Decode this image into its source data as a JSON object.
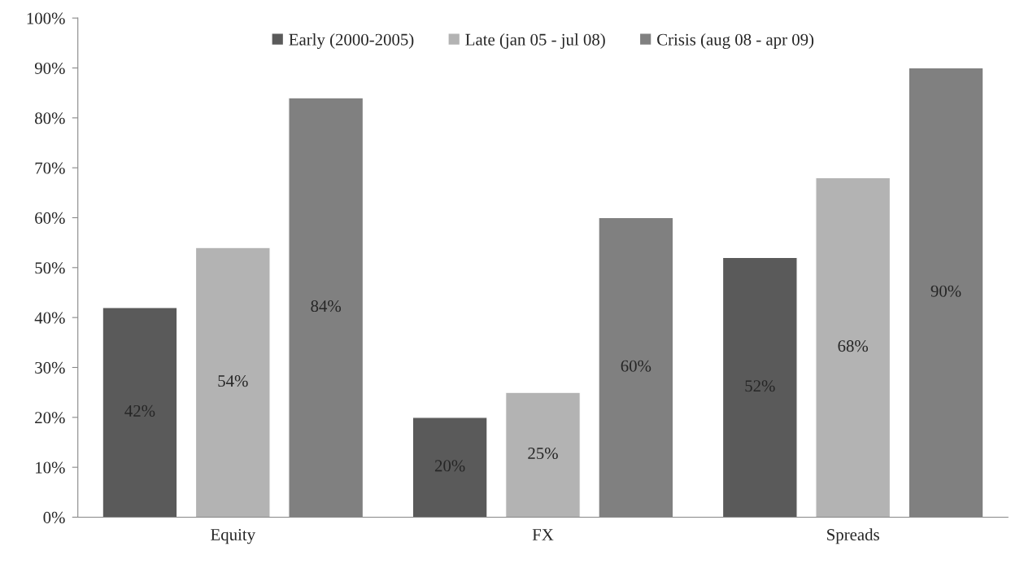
{
  "chart_data": {
    "type": "bar",
    "categories": [
      "Equity",
      "FX",
      "Spreads"
    ],
    "series": [
      {
        "name": "Early (2000-2005)",
        "color": "#5a5a5a",
        "values": [
          42,
          20,
          52
        ],
        "value_labels": [
          "42%",
          "20%",
          "52%"
        ]
      },
      {
        "name": "Late (jan 05 - jul 08)",
        "color": "#b3b3b3",
        "values": [
          54,
          25,
          68
        ],
        "value_labels": [
          "54%",
          "25%",
          "68%"
        ]
      },
      {
        "name": "Crisis (aug 08 - apr 09)",
        "color": "#808080",
        "values": [
          84,
          60,
          90
        ],
        "value_labels": [
          "84%",
          "60%",
          "90%"
        ]
      }
    ],
    "ylim": [
      0,
      100
    ],
    "yticks": [
      {
        "value": 0,
        "label": "0%"
      },
      {
        "value": 10,
        "label": "10%"
      },
      {
        "value": 20,
        "label": "20%"
      },
      {
        "value": 30,
        "label": "30%"
      },
      {
        "value": 40,
        "label": "40%"
      },
      {
        "value": 50,
        "label": "50%"
      },
      {
        "value": 60,
        "label": "60%"
      },
      {
        "value": 70,
        "label": "70%"
      },
      {
        "value": 80,
        "label": "80%"
      },
      {
        "value": 90,
        "label": "90%"
      },
      {
        "value": 100,
        "label": "100%"
      }
    ],
    "grid": false,
    "legend": "top"
  }
}
